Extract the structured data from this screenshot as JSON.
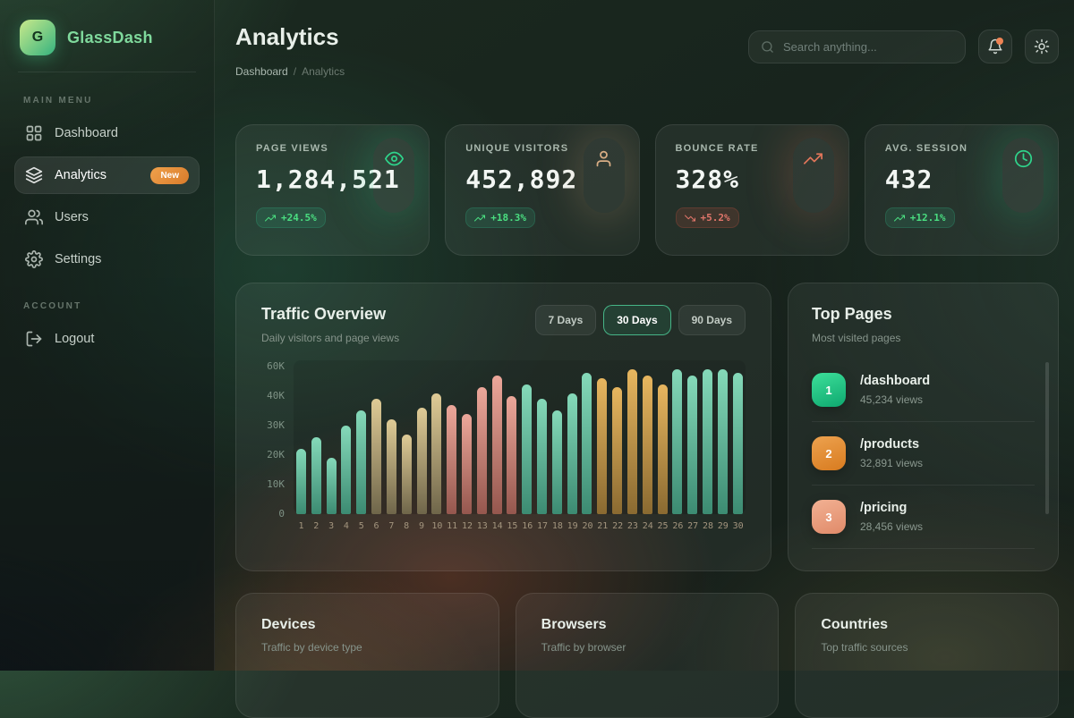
{
  "app": {
    "logo_letter": "G",
    "name": "GlassDash"
  },
  "sidebar": {
    "sections": [
      {
        "label": "MAIN MENU",
        "items": [
          {
            "label": "Dashboard",
            "icon": "grid-icon",
            "active": false
          },
          {
            "label": "Analytics",
            "icon": "layers-icon",
            "active": true,
            "badge": "New"
          },
          {
            "label": "Users",
            "icon": "users-icon",
            "active": false
          },
          {
            "label": "Settings",
            "icon": "gear-icon",
            "active": false
          }
        ]
      },
      {
        "label": "ACCOUNT",
        "items": [
          {
            "label": "Logout",
            "icon": "logout-icon",
            "active": false
          }
        ]
      }
    ]
  },
  "header": {
    "title": "Analytics",
    "breadcrumb": {
      "parent": "Dashboard",
      "separator": "/",
      "current": "Analytics"
    },
    "search_placeholder": "Search anything..."
  },
  "stats": [
    {
      "label": "PAGE VIEWS",
      "value": "1,284,521",
      "change": "+24.5%",
      "trend": "up",
      "icon": "eye-icon",
      "accent": "#2fd38b"
    },
    {
      "label": "UNIQUE VISITORS",
      "value": "452,892",
      "change": "+18.3%",
      "trend": "up",
      "icon": "person-icon",
      "accent": "#d9ae85"
    },
    {
      "label": "BOUNCE RATE",
      "value": "328%",
      "change": "+5.2%",
      "trend": "down",
      "icon": "trending-up-icon",
      "accent": "#e0755a"
    },
    {
      "label": "AVG. SESSION",
      "value": "432",
      "change": "+12.1%",
      "trend": "up",
      "icon": "clock-icon",
      "accent": "#2fd38b"
    }
  ],
  "traffic": {
    "title": "Traffic Overview",
    "subtitle": "Daily visitors and page views",
    "range_buttons": [
      "7 Days",
      "30 Days",
      "90 Days"
    ],
    "active_range": "30 Days"
  },
  "chart_data": {
    "type": "bar",
    "title": "Traffic Overview",
    "x": [
      1,
      2,
      3,
      4,
      5,
      6,
      7,
      8,
      9,
      10,
      11,
      12,
      13,
      14,
      15,
      16,
      17,
      18,
      19,
      20,
      21,
      22,
      23,
      24,
      25,
      26,
      27,
      28,
      29,
      30
    ],
    "values": [
      22000,
      26000,
      19000,
      30000,
      35000,
      39000,
      32000,
      27000,
      36000,
      41000,
      37000,
      34000,
      43000,
      47000,
      40000,
      44000,
      39000,
      35000,
      41000,
      48000,
      46000,
      43000,
      49000,
      47000,
      44000,
      49000,
      47000,
      49000,
      49000,
      48000
    ],
    "y_tick_labels_bottom_to_top": [
      "0",
      "10K",
      "20K",
      "30K",
      "40K",
      "60K"
    ],
    "ylim": [
      0,
      60000
    ],
    "grid": false,
    "legend": false,
    "palette": {
      "teal": {
        "top": "#85d9b9",
        "bottom": "#3c8b72"
      },
      "tan": {
        "top": "#dfcb96",
        "bottom": "#6f664a"
      },
      "salmon": {
        "top": "#eca79a",
        "bottom": "#95574e"
      },
      "gold": {
        "top": "#e7b65f",
        "bottom": "#8a6a31"
      }
    },
    "color_by_day": [
      "teal",
      "teal",
      "teal",
      "teal",
      "teal",
      "tan",
      "tan",
      "tan",
      "tan",
      "tan",
      "salmon",
      "salmon",
      "salmon",
      "salmon",
      "salmon",
      "teal",
      "teal",
      "teal",
      "teal",
      "teal",
      "gold",
      "gold",
      "gold",
      "gold",
      "gold",
      "teal",
      "teal",
      "teal",
      "teal",
      "teal"
    ]
  },
  "top_pages": {
    "title": "Top Pages",
    "subtitle": "Most visited pages",
    "items": [
      {
        "rank": "1",
        "path": "/dashboard",
        "views": "45,234 views",
        "badge_top": "#3ddf9a",
        "badge_bottom": "#0ea86f"
      },
      {
        "rank": "2",
        "path": "/products",
        "views": "32,891 views",
        "badge_top": "#eda24f",
        "badge_bottom": "#d87b1f"
      },
      {
        "rank": "3",
        "path": "/pricing",
        "views": "28,456 views",
        "badge_top": "#f2b193",
        "badge_bottom": "#e08a69"
      }
    ]
  },
  "bottom_cards": [
    {
      "title": "Devices",
      "subtitle": "Traffic by device type"
    },
    {
      "title": "Browsers",
      "subtitle": "Traffic by browser"
    },
    {
      "title": "Countries",
      "subtitle": "Top traffic sources"
    }
  ],
  "colors": {
    "accent_green": "#34d399",
    "badge_up_text": "#4ade80",
    "badge_down_text": "#e0756a",
    "new_badge_top": "#f0a14c",
    "new_badge_bottom": "#d97b2a",
    "notification_dot": "#ef8354"
  }
}
